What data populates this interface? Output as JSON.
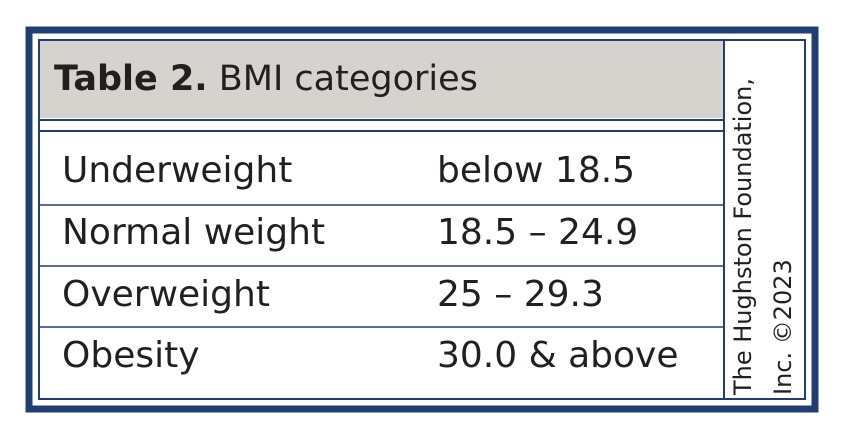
{
  "table": {
    "label": "Table 2.",
    "title": "BMI categories",
    "rows": [
      [
        "Underweight",
        "below 18.5"
      ],
      [
        "Normal weight",
        "18.5 – 24.9"
      ],
      [
        "Overweight",
        "25 – 29.3"
      ],
      [
        "Obesity",
        "30.0 & above"
      ]
    ],
    "credit": [
      "The Hughston Foundation,",
      "Inc. ©2023"
    ]
  }
}
